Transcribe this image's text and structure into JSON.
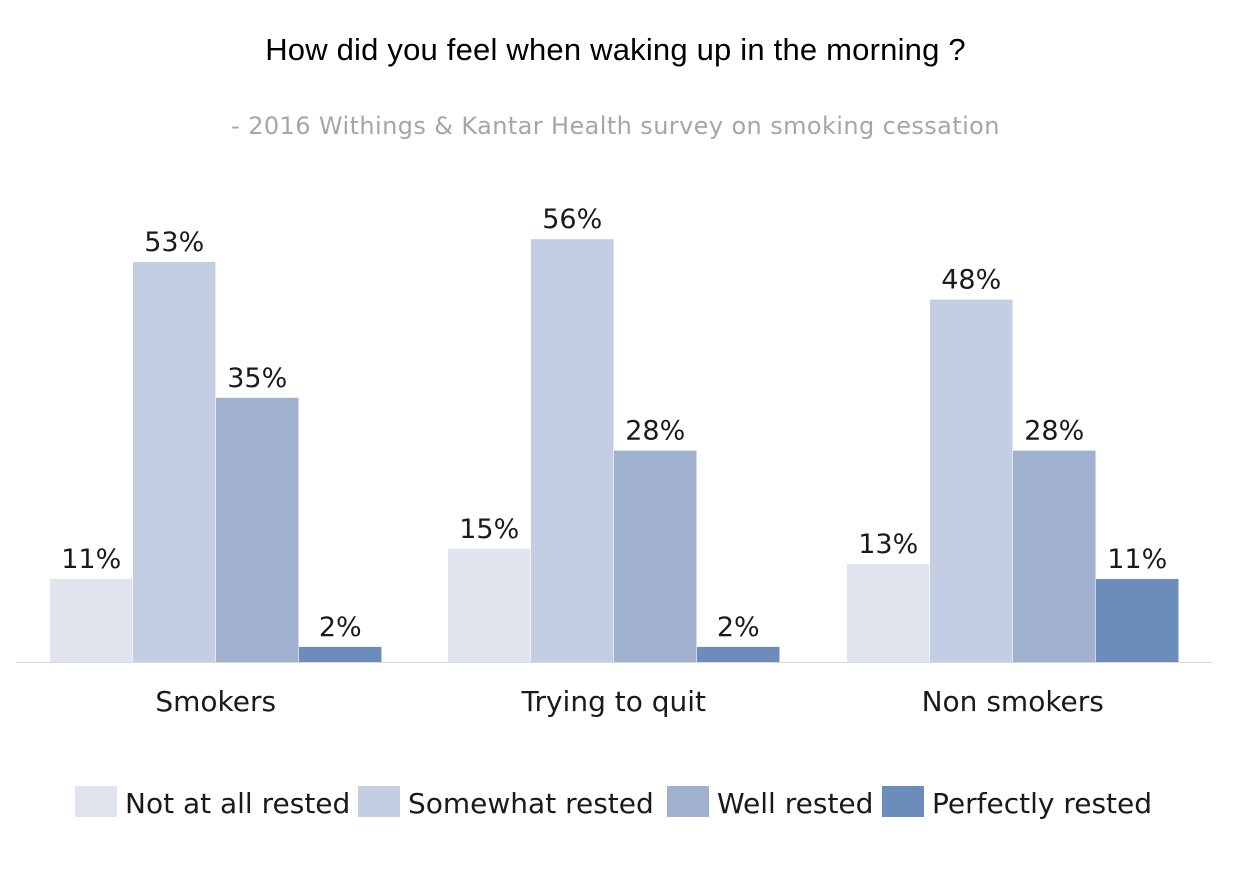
{
  "chart_data": {
    "type": "bar",
    "title": "How did you feel when waking up in the morning ?",
    "subtitle": "- 2016 Withings & Kantar Health survey on smoking cessation",
    "categories": [
      "Smokers",
      "Trying to quit",
      "Non smokers"
    ],
    "series": [
      {
        "name": "Not at all rested",
        "values": [
          11,
          15,
          13
        ],
        "labels": [
          "11%",
          "15%",
          "13%"
        ],
        "color": "#dfe4ef"
      },
      {
        "name": "Somewhat rested",
        "values": [
          53,
          56,
          48
        ],
        "labels": [
          "53%",
          "56%",
          "48%"
        ],
        "color": "#c3cee2"
      },
      {
        "name": "Well rested",
        "values": [
          35,
          28,
          28
        ],
        "labels": [
          "35%",
          "28%",
          "28%"
        ],
        "color": "#9fb1cf"
      },
      {
        "name": "Perfectly rested",
        "values": [
          2,
          2,
          11
        ],
        "labels": [
          "2%",
          "2%",
          "11%"
        ],
        "color": "#6c8cba"
      }
    ],
    "unit": "%",
    "ylim": [
      0,
      60
    ],
    "grid": false,
    "legend_position": "bottom",
    "axis_color": "#d9d9d9"
  }
}
